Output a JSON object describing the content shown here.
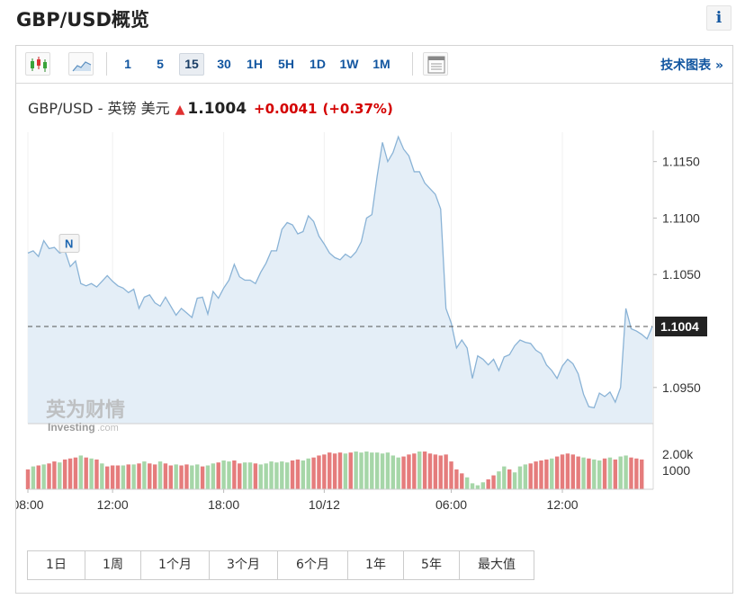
{
  "page": {
    "title": "GBP/USD概览",
    "info_label": "i"
  },
  "toolbar": {
    "timeframes": [
      "1",
      "5",
      "15",
      "30",
      "1H",
      "5H",
      "1D",
      "1W",
      "1M"
    ],
    "active_timeframe": "15",
    "tech_chart_link": "技术图表 »"
  },
  "quote": {
    "pair": "GBP/USD - 英镑 美元",
    "price": "1.1004",
    "change": "+0.0041",
    "change_pct": "(+0.37%)"
  },
  "watermark": {
    "brand_cn": "英为财情",
    "brand_en": "Investing",
    "brand_suffix": ".com"
  },
  "news_marker": "N",
  "range_buttons": [
    "1日",
    "1周",
    "1个月",
    "3个月",
    "6个月",
    "1年",
    "5年",
    "最大值"
  ],
  "colors": {
    "line": "#8ab3d6",
    "area": "#e4eef7",
    "up_volume": "#a6d6a8",
    "down_volume": "#e57c7c",
    "accent_blue": "#1256a0",
    "change_red": "#d40000",
    "current_label_bg": "#222222"
  },
  "chart_data": {
    "type": "line",
    "title": "",
    "ylim": [
      1.0918,
      1.1176
    ],
    "y_ticks": [
      "1.1150",
      "1.1100",
      "1.1050",
      "1.0950"
    ],
    "current_price_label": "1.1004",
    "current_price": 1.1004,
    "x_tick_labels": [
      "08:00",
      "12:00",
      "18:00",
      "10/12",
      "06:00",
      "12:00"
    ],
    "x_tick_positions_index": [
      0,
      16,
      37,
      56,
      80,
      101
    ],
    "series": [
      {
        "values": [
          1.1069,
          1.1071,
          1.1066,
          1.108,
          1.1073,
          1.1074,
          1.1069,
          1.1071,
          1.1057,
          1.1062,
          1.1042,
          1.104,
          1.1042,
          1.1039,
          1.1044,
          1.1049,
          1.1044,
          1.104,
          1.1038,
          1.1034,
          1.1037,
          1.102,
          1.103,
          1.1032,
          1.1025,
          1.1022,
          1.103,
          1.1022,
          1.1014,
          1.102,
          1.1016,
          1.1012,
          1.1029,
          1.103,
          1.1015,
          1.1035,
          1.1029,
          1.1038,
          1.1045,
          1.1059,
          1.1048,
          1.1045,
          1.1045,
          1.1042,
          1.1052,
          1.106,
          1.1071,
          1.1071,
          1.109,
          1.1096,
          1.1094,
          1.1086,
          1.1088,
          1.1102,
          1.1097,
          1.1084,
          1.1077,
          1.1069,
          1.1065,
          1.1063,
          1.1068,
          1.1065,
          1.107,
          1.1079,
          1.11,
          1.1103,
          1.1137,
          1.1167,
          1.115,
          1.1158,
          1.1172,
          1.1161,
          1.1155,
          1.1141,
          1.1141,
          1.1131,
          1.1126,
          1.1121,
          1.1108,
          1.102,
          1.1007,
          1.0985,
          1.0992,
          1.0985,
          1.0958,
          1.0978,
          1.0975,
          1.097,
          1.0975,
          1.0965,
          1.0977,
          1.0979,
          1.0987,
          1.0992,
          1.099,
          1.0989,
          1.0983,
          1.098,
          1.097,
          1.0965,
          1.0958,
          1.0969,
          1.0975,
          1.0971,
          1.0962,
          1.0944,
          1.0933,
          1.0932,
          1.0945,
          1.0942,
          1.0946,
          1.0937,
          1.095,
          1.102,
          1.1002,
          1.1,
          1.0997,
          1.0993,
          1.1004
        ]
      }
    ],
    "volume": {
      "y_ticks": [
        "2.00k",
        "1000"
      ],
      "values": [
        1000,
        1150,
        1200,
        1250,
        1300,
        1400,
        1350,
        1500,
        1550,
        1600,
        1700,
        1600,
        1550,
        1500,
        1300,
        1150,
        1200,
        1200,
        1200,
        1250,
        1250,
        1300,
        1400,
        1300,
        1250,
        1400,
        1300,
        1200,
        1250,
        1200,
        1250,
        1200,
        1250,
        1150,
        1200,
        1300,
        1350,
        1450,
        1400,
        1450,
        1300,
        1350,
        1350,
        1300,
        1250,
        1300,
        1400,
        1350,
        1400,
        1350,
        1450,
        1500,
        1450,
        1550,
        1600,
        1700,
        1750,
        1850,
        1800,
        1850,
        1800,
        1850,
        1900,
        1850,
        1900,
        1850,
        1850,
        1800,
        1850,
        1700,
        1600,
        1650,
        1750,
        1800,
        1900,
        1900,
        1800,
        1750,
        1700,
        1750,
        1400,
        1000,
        800,
        600,
        300,
        200,
        350,
        500,
        700,
        900,
        1150,
        1000,
        850,
        1150,
        1250,
        1300,
        1400,
        1450,
        1500,
        1550,
        1650,
        1750,
        1800,
        1750,
        1650,
        1600,
        1550,
        1500,
        1450,
        1550,
        1600,
        1500,
        1650,
        1700,
        1600,
        1550,
        1500
      ],
      "up": [
        0,
        1,
        0,
        1,
        0,
        0,
        1,
        0,
        0,
        0,
        1,
        0,
        1,
        0,
        1,
        0,
        0,
        0,
        1,
        0,
        1,
        0,
        1,
        0,
        0,
        1,
        0,
        0,
        1,
        0,
        0,
        1,
        1,
        0,
        1,
        1,
        0,
        1,
        1,
        0,
        0,
        1,
        1,
        0,
        1,
        1,
        1,
        1,
        1,
        1,
        0,
        0,
        1,
        1,
        0,
        0,
        0,
        0,
        0,
        0,
        1,
        0,
        1,
        1,
        1,
        1,
        1,
        1,
        1,
        1,
        1,
        0,
        0,
        0,
        1,
        0,
        0,
        0,
        0,
        0,
        0,
        0,
        0,
        1,
        1,
        1,
        1,
        0,
        0,
        1,
        1,
        0,
        1,
        1,
        1,
        0,
        0,
        0,
        0,
        1,
        0,
        0,
        0,
        0,
        0,
        1,
        0,
        1,
        1,
        0,
        1,
        0,
        1,
        1,
        0,
        0,
        0
      ]
    }
  }
}
